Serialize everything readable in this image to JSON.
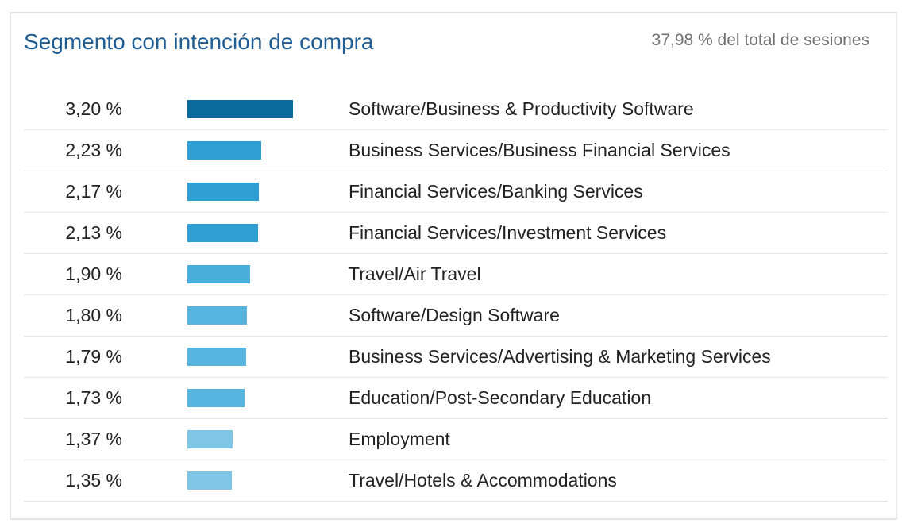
{
  "card": {
    "title": "Segmento con intención de compra",
    "subtitle": "37,98 % del total de sesiones"
  },
  "chart_data": {
    "type": "bar",
    "orientation": "horizontal",
    "max_value": 3.2,
    "rows": [
      {
        "value": 3.2,
        "value_label": "3,20 %",
        "category": "Software/Business & Productivity Software",
        "color": "#0b6a9e"
      },
      {
        "value": 2.23,
        "value_label": "2,23 %",
        "category": "Business Services/Business Financial Services",
        "color": "#2f9fd3"
      },
      {
        "value": 2.17,
        "value_label": "2,17 %",
        "category": "Financial Services/Banking Services",
        "color": "#2f9fd3"
      },
      {
        "value": 2.13,
        "value_label": "2,13 %",
        "category": "Financial Services/Investment Services",
        "color": "#2f9fd3"
      },
      {
        "value": 1.9,
        "value_label": "1,90 %",
        "category": "Travel/Air Travel",
        "color": "#48aedc"
      },
      {
        "value": 1.8,
        "value_label": "1,80 %",
        "category": "Software/Design Software",
        "color": "#56b4df"
      },
      {
        "value": 1.79,
        "value_label": "1,79 %",
        "category": "Business Services/Advertising & Marketing Services",
        "color": "#56b4df"
      },
      {
        "value": 1.73,
        "value_label": "1,73 %",
        "category": "Education/Post-Secondary Education",
        "color": "#56b4df"
      },
      {
        "value": 1.37,
        "value_label": "1,37 %",
        "category": "Employment",
        "color": "#7fc5e6"
      },
      {
        "value": 1.35,
        "value_label": "1,35 %",
        "category": "Travel/Hotels & Accommodations",
        "color": "#7fc5e6"
      }
    ]
  }
}
